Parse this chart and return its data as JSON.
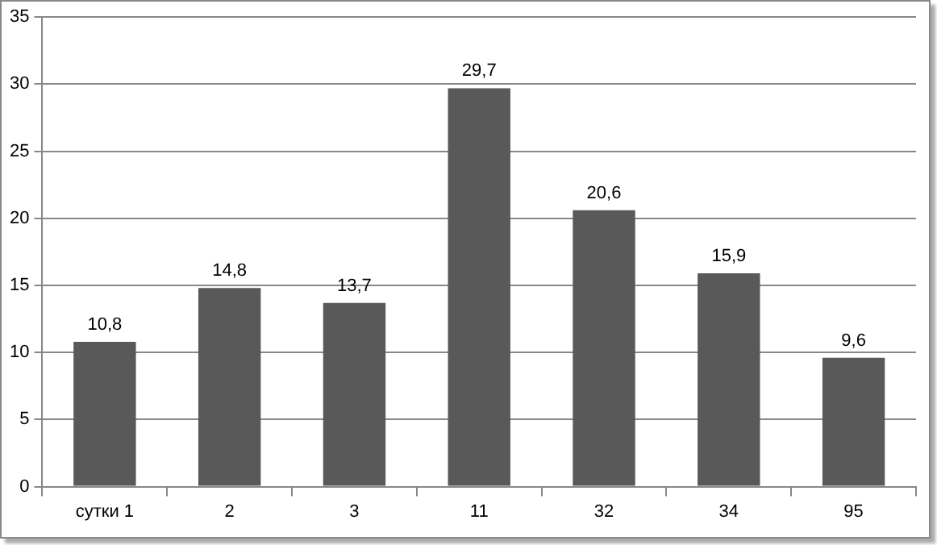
{
  "chart_data": {
    "type": "bar",
    "categories": [
      "сутки 1",
      "2",
      "3",
      "11",
      "32",
      "34",
      "95"
    ],
    "values": [
      10.8,
      14.8,
      13.7,
      29.7,
      20.6,
      15.9,
      9.6
    ],
    "value_labels": [
      "10,8",
      "14,8",
      "13,7",
      "29,7",
      "20,6",
      "15,9",
      "9,6"
    ],
    "color": "#595959",
    "ylim": [
      0,
      35
    ],
    "yticks": [
      0,
      5,
      10,
      15,
      20,
      25,
      30,
      35
    ],
    "grid": "y",
    "legend": false
  }
}
